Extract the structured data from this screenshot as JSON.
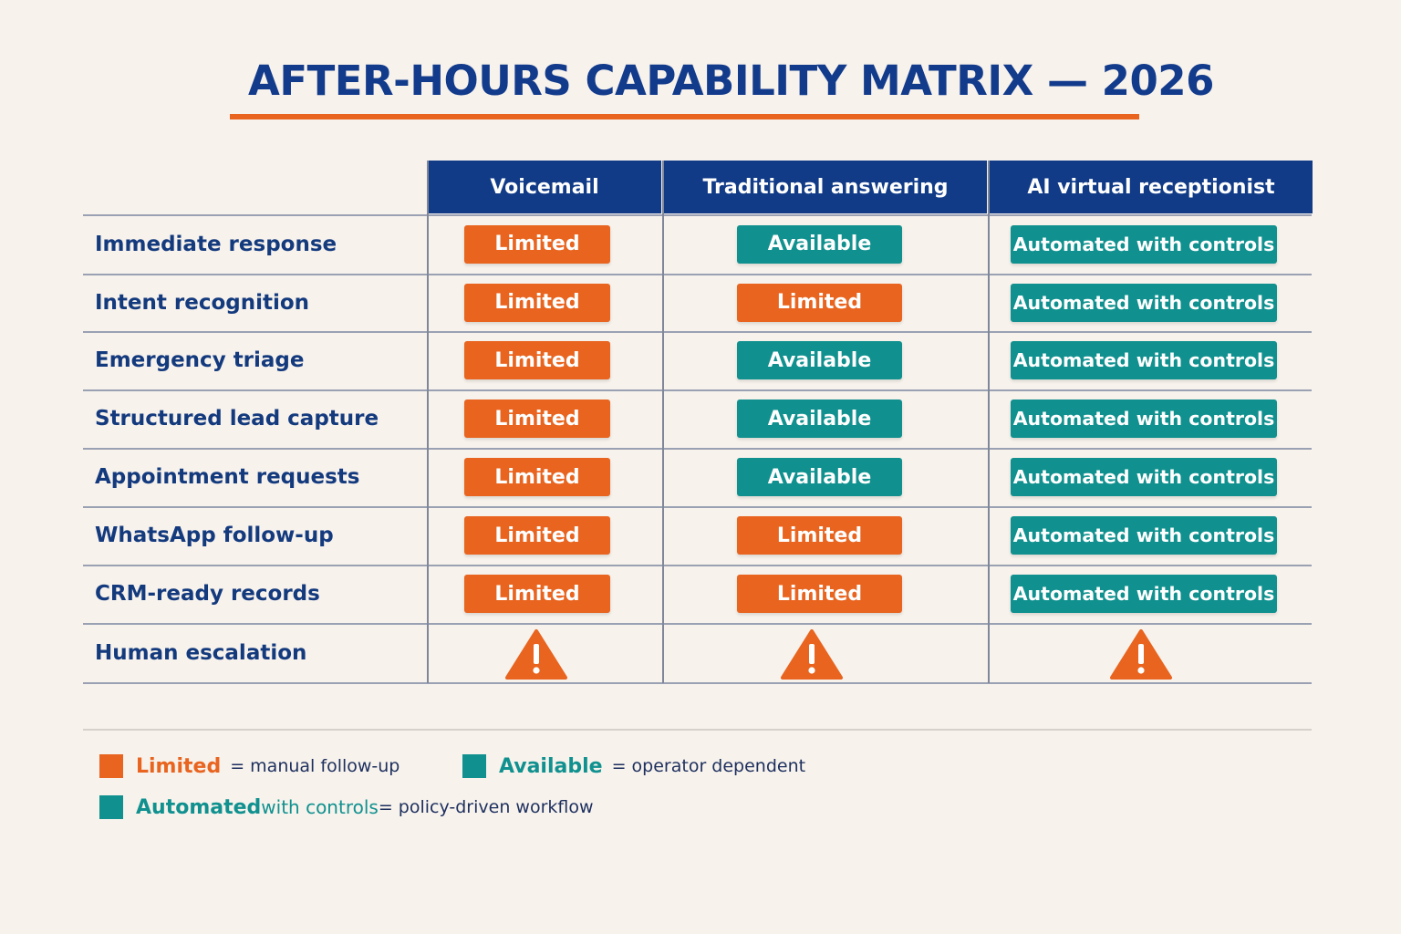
{
  "title": "AFTER-HOURS CAPABILITY MATRIX — 2026",
  "colors": {
    "navy": "#113b87",
    "orange": "#e8641f",
    "teal": "#10918f",
    "background": "#f7f2ec"
  },
  "columns": [
    "Voicemail",
    "Traditional answering",
    "AI virtual receptionist"
  ],
  "rows": [
    {
      "label": "Immediate response",
      "cells": [
        "Limited",
        "Available",
        "Automated with controls"
      ]
    },
    {
      "label": "Intent recognition",
      "cells": [
        "Limited",
        "Limited",
        "Automated with controls"
      ]
    },
    {
      "label": "Emergency triage",
      "cells": [
        "Limited",
        "Available",
        "Automated with controls"
      ]
    },
    {
      "label": "Structured lead capture",
      "cells": [
        "Limited",
        "Available",
        "Automated with controls"
      ]
    },
    {
      "label": "Appointment requests",
      "cells": [
        "Limited",
        "Available",
        "Automated with controls"
      ]
    },
    {
      "label": "WhatsApp follow-up",
      "cells": [
        "Limited",
        "Limited",
        "Automated with controls"
      ]
    },
    {
      "label": "CRM-ready records",
      "cells": [
        "Limited",
        "Limited",
        "Automated with controls"
      ]
    },
    {
      "label": "Human escalation",
      "cells": [
        "warning-icon",
        "warning-icon",
        "warning-icon"
      ]
    }
  ],
  "legend": {
    "limited": {
      "term": "Limited",
      "desc": "= manual follow-up"
    },
    "available": {
      "term": "Available",
      "desc": "= operator dependent"
    },
    "automated": {
      "term_bold": "Automated",
      "term_rest": " with controls",
      "desc": " = policy-driven workflow"
    }
  }
}
